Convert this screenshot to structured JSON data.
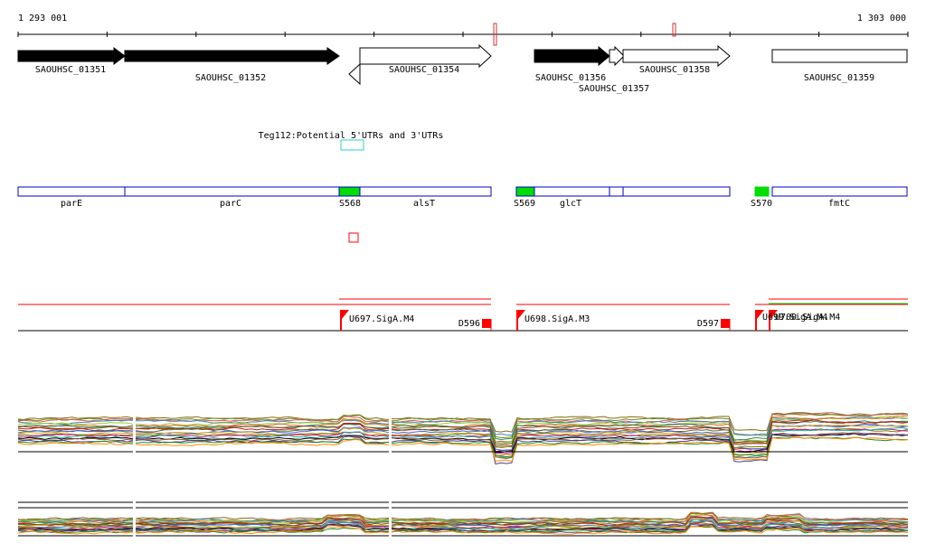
{
  "coordinates": {
    "start": "1 293 001",
    "end": "1 303 000"
  },
  "genes": [
    {
      "id": "SAOUHSC_01351",
      "filled": true,
      "strand": "+"
    },
    {
      "id": "SAOUHSC_01352",
      "filled": true,
      "strand": "+"
    },
    {
      "id": "SAOUHSC_01354",
      "filled": false,
      "strand": "+"
    },
    {
      "id": "SAOUHSC_01356",
      "filled": true,
      "strand": "+"
    },
    {
      "id": "SAOUHSC_01357",
      "filled": false,
      "strand": "+"
    },
    {
      "id": "SAOUHSC_01358",
      "filled": false,
      "strand": "+"
    },
    {
      "id": "SAOUHSC_01359",
      "filled": false,
      "strand": "+"
    }
  ],
  "utr_annotation": {
    "label": "Teg112:Potential 5'UTRs and 3'UTRs",
    "color": "#33cccc"
  },
  "gene_names": [
    "parE",
    "parC",
    "alsT",
    "glcT",
    "fmtC"
  ],
  "features": [
    "S568",
    "S569",
    "S570"
  ],
  "transcripts": [
    {
      "start_label": "U697.SigA.M4",
      "end_label": "D596"
    },
    {
      "start_label": "U698.SigA.M3",
      "end_label": "D597"
    },
    {
      "start_label": "U699.SigA.M4",
      "end_label": ""
    },
    {
      "start_label": "U700.SigA.M4",
      "end_label": ""
    }
  ],
  "colors": {
    "gene_fill": "#000000",
    "gene_track": "#0000cc",
    "sigma_feature": "#00dd00",
    "transcript": "#ff0000",
    "trace_baseline": "#000000"
  }
}
